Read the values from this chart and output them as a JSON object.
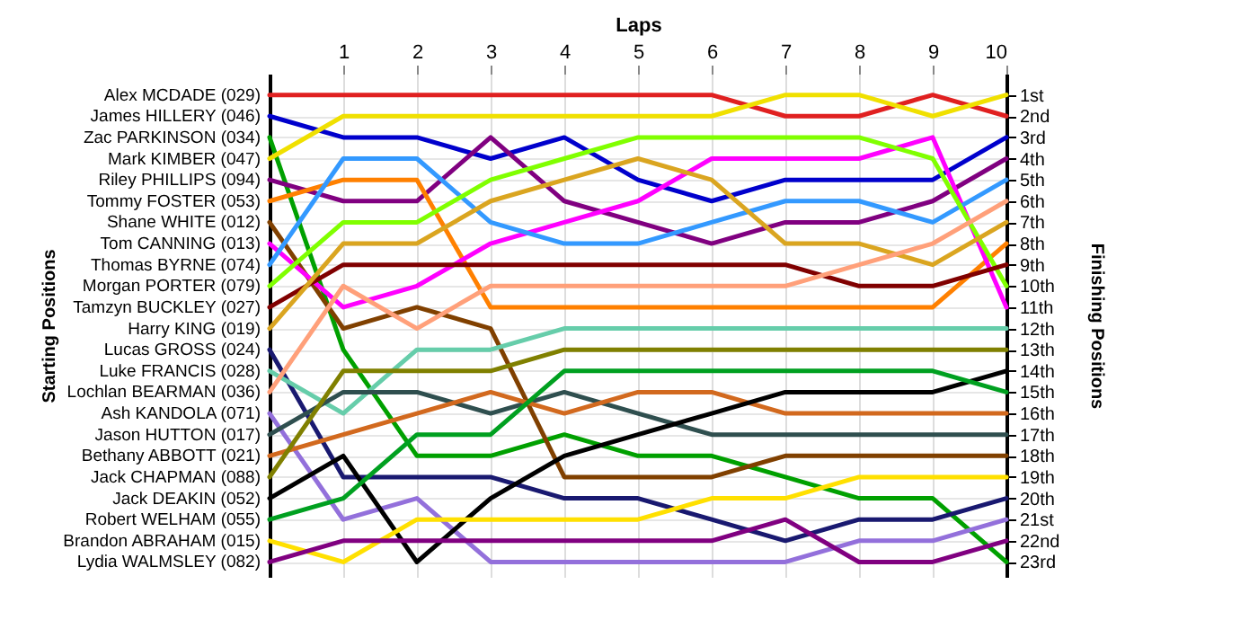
{
  "chart_data": {
    "type": "line",
    "xlabel": "Laps",
    "ylabel": "Finishing Positions",
    "annotations": [
      "Starting Positions"
    ],
    "x": [
      0,
      1,
      2,
      3,
      4,
      5,
      6,
      7,
      8,
      9,
      10
    ],
    "xlim": [
      0,
      10
    ],
    "xticks": [
      1,
      2,
      3,
      4,
      5,
      6,
      7,
      8,
      9,
      10
    ],
    "ylim": [
      23.7,
      0
    ],
    "yticks": [
      {
        "value": 1,
        "label": "1st"
      },
      {
        "value": 2,
        "label": "2nd"
      },
      {
        "value": 3,
        "label": "3rd"
      },
      {
        "value": 4,
        "label": "4th"
      },
      {
        "value": 5,
        "label": "5th"
      },
      {
        "value": 6,
        "label": "6th"
      },
      {
        "value": 7,
        "label": "7th"
      },
      {
        "value": 8,
        "label": "8th"
      },
      {
        "value": 9,
        "label": "9th"
      },
      {
        "value": 10,
        "label": "10th"
      },
      {
        "value": 11,
        "label": "11th"
      },
      {
        "value": 12,
        "label": "12th"
      },
      {
        "value": 13,
        "label": "13th"
      },
      {
        "value": 14,
        "label": "14th"
      },
      {
        "value": 15,
        "label": "15th"
      },
      {
        "value": 16,
        "label": "16th"
      },
      {
        "value": 17,
        "label": "17th"
      },
      {
        "value": 18,
        "label": "18th"
      },
      {
        "value": 19,
        "label": "19th"
      },
      {
        "value": 20,
        "label": "20th"
      },
      {
        "value": 21,
        "label": "21st"
      },
      {
        "value": 22,
        "label": "22nd"
      },
      {
        "value": 23,
        "label": "23rd"
      }
    ],
    "grid": true,
    "line_style": "solid",
    "legend": "left",
    "series": [
      {
        "name": "Alex MCDADE (029)",
        "color": "#e02020",
        "values": [
          1,
          1,
          1,
          1,
          1,
          1,
          1,
          2,
          2,
          1,
          2
        ]
      },
      {
        "name": "James HILLERY (046)",
        "color": "#0000cc",
        "values": [
          2,
          3,
          3,
          4,
          3,
          5,
          6,
          5,
          5,
          5,
          3
        ]
      },
      {
        "name": "Zac PARKINSON (034)",
        "color": "#00a000",
        "values": [
          3,
          13,
          18,
          18,
          17,
          18,
          18,
          19,
          20,
          20,
          23
        ]
      },
      {
        "name": "Mark KIMBER (047)",
        "color": "#f0e000",
        "values": [
          4,
          2,
          2,
          2,
          2,
          2,
          2,
          1,
          1,
          2,
          1
        ]
      },
      {
        "name": "Riley PHILLIPS (094)",
        "color": "#800080",
        "values": [
          5,
          6,
          6,
          3,
          6,
          7,
          8,
          7,
          7,
          6,
          4
        ]
      },
      {
        "name": "Tommy FOSTER (053)",
        "color": "#ff8000",
        "values": [
          6,
          5,
          5,
          11,
          11,
          11,
          11,
          11,
          11,
          11,
          8
        ]
      },
      {
        "name": "Shane WHITE (012)",
        "color": "#804000",
        "values": [
          7,
          12,
          11,
          12,
          19,
          19,
          19,
          18,
          18,
          18,
          18
        ]
      },
      {
        "name": "Tom CANNING (013)",
        "color": "#ff00ff",
        "values": [
          8,
          11,
          10,
          8,
          7,
          6,
          4,
          4,
          4,
          3,
          11
        ]
      },
      {
        "name": "Thomas BYRNE (074)",
        "color": "#3399ff",
        "values": [
          9,
          4,
          4,
          7,
          8,
          8,
          7,
          6,
          6,
          7,
          5
        ]
      },
      {
        "name": "Morgan PORTER (079)",
        "color": "#80ff00",
        "values": [
          10,
          7,
          7,
          5,
          4,
          3,
          3,
          3,
          3,
          4,
          10
        ]
      },
      {
        "name": "Tamzyn BUCKLEY (027)",
        "color": "#800000",
        "values": [
          11,
          9,
          9,
          9,
          9,
          9,
          9,
          9,
          10,
          10,
          9
        ]
      },
      {
        "name": "Harry KING (019)",
        "color": "#daa520",
        "values": [
          12,
          8,
          8,
          6,
          5,
          4,
          5,
          8,
          8,
          9,
          7
        ]
      },
      {
        "name": "Lucas GROSS (024)",
        "color": "#191970",
        "values": [
          13,
          19,
          19,
          19,
          20,
          20,
          21,
          22,
          21,
          21,
          20
        ]
      },
      {
        "name": "Luke FRANCIS (028)",
        "color": "#66cdaa",
        "values": [
          14,
          16,
          13,
          13,
          12,
          12,
          12,
          12,
          12,
          12,
          12
        ]
      },
      {
        "name": "Lochlan BEARMAN (036)",
        "color": "#ffa07a",
        "values": [
          15,
          10,
          12,
          10,
          10,
          10,
          10,
          10,
          9,
          8,
          6
        ]
      },
      {
        "name": "Ash KANDOLA (071)",
        "color": "#9370db",
        "values": [
          16,
          21,
          20,
          23,
          23,
          23,
          23,
          23,
          22,
          22,
          21
        ]
      },
      {
        "name": "Jason HUTTON (017)",
        "color": "#2f4f4f",
        "values": [
          17,
          15,
          15,
          16,
          15,
          16,
          17,
          17,
          17,
          17,
          17
        ]
      },
      {
        "name": "Bethany ABBOTT (021)",
        "color": "#d2691e",
        "values": [
          18,
          17,
          16,
          15,
          16,
          15,
          15,
          16,
          16,
          16,
          16
        ]
      },
      {
        "name": "Jack CHAPMAN (088)",
        "color": "#808000",
        "values": [
          19,
          14,
          14,
          14,
          13,
          13,
          13,
          13,
          13,
          13,
          13
        ]
      },
      {
        "name": "Jack DEAKIN (052)",
        "color": "#000000",
        "values": [
          20,
          18,
          23,
          20,
          18,
          17,
          16,
          15,
          15,
          15,
          14
        ]
      },
      {
        "name": "Robert WELHAM (055)",
        "color": "#00a020",
        "values": [
          21,
          20,
          17,
          17,
          14,
          14,
          14,
          14,
          14,
          14,
          15
        ]
      },
      {
        "name": "Brandon ABRAHAM (015)",
        "color": "#ffe000",
        "values": [
          22,
          23,
          21,
          21,
          21,
          21,
          20,
          20,
          19,
          19,
          19
        ]
      },
      {
        "name": "Lydia WALMSLEY (082)",
        "color": "#800080",
        "values": [
          23,
          22,
          22,
          22,
          22,
          22,
          22,
          21,
          23,
          23,
          22
        ]
      }
    ]
  }
}
